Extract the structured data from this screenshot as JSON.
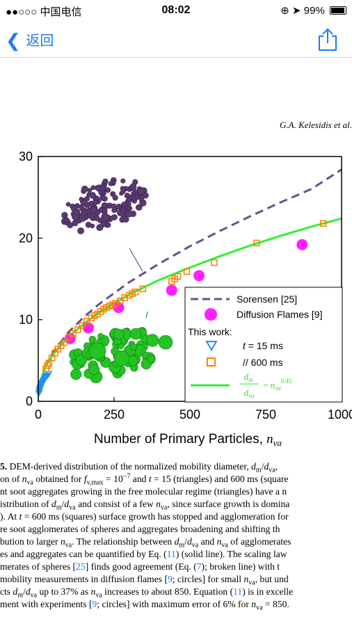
{
  "status": {
    "carrier": "●●○○○ 中国电信",
    "time": "08:02",
    "battery": "99%"
  },
  "nav": {
    "back_label": "返回",
    "share_icon": "share-icon"
  },
  "header": {
    "author": "G.A. Kelesidis et al."
  },
  "chart_data": {
    "type": "scatter",
    "xlabel": "Number of Primary Particles, n_va",
    "xlim": [
      0,
      1000
    ],
    "ylim": [
      0,
      30
    ],
    "xticks": [
      0,
      250,
      500,
      750,
      1000
    ],
    "yticks": [
      0,
      10,
      20,
      30
    ],
    "xtick_labels": [
      "0",
      "250",
      "500",
      "750",
      "1000"
    ],
    "ytick_labels": [
      "0",
      "10",
      "20",
      "30"
    ],
    "legend": {
      "placement": "bottom-right",
      "sorensen": "Sorensen [25]",
      "diffusion": "Diffusion Flames [9]",
      "this_work": "This work:",
      "t15": "t = 15 ms",
      "t600": "//   600 ms",
      "eq_num": "d_m",
      "eq_den": "d_va",
      "eq_rhs": "= n_va^0.45"
    },
    "series": [
      {
        "name": "Sorensen [25]",
        "style": "dashed",
        "color": "#6b4f8a",
        "x": [
          1,
          20,
          50,
          100,
          150,
          200,
          300,
          400,
          500,
          600,
          700,
          800,
          900,
          1000
        ],
        "y": [
          1.1,
          4.0,
          6.1,
          8.5,
          10.3,
          11.9,
          14.6,
          16.9,
          19.0,
          20.9,
          22.7,
          24.4,
          26.0,
          28.4
        ]
      },
      {
        "name": "Diffusion Flames [9]",
        "marker": "circle",
        "color": "#ff1fff",
        "x": [
          105,
          165,
          265,
          440,
          530,
          870
        ],
        "y": [
          7.7,
          9.0,
          11.5,
          13.6,
          15.4,
          19.2
        ]
      },
      {
        "name": "t = 15 ms",
        "marker": "triangle-down",
        "color": "#1e90ff",
        "x": [
          2,
          3,
          4,
          5,
          6,
          7,
          8,
          9,
          10,
          11,
          12,
          13,
          14,
          15,
          17,
          19,
          21,
          23,
          25,
          28,
          31,
          35
        ],
        "y": [
          1.0,
          1.2,
          1.4,
          1.5,
          1.6,
          1.7,
          1.8,
          1.9,
          2.0,
          2.1,
          2.2,
          2.2,
          2.3,
          2.4,
          2.5,
          2.6,
          2.8,
          2.9,
          3.0,
          3.1,
          3.2,
          3.4
        ]
      },
      {
        "name": "600 ms",
        "marker": "square-open",
        "color": "#ff7f00",
        "x": [
          25,
          30,
          35,
          45,
          55,
          65,
          75,
          85,
          100,
          115,
          130,
          145,
          160,
          175,
          185,
          195,
          205,
          215,
          225,
          235,
          245,
          255,
          270,
          285,
          300,
          310,
          320,
          345,
          440,
          450,
          460,
          490,
          580,
          720,
          940
        ],
        "y": [
          4.0,
          4.4,
          4.7,
          5.3,
          5.9,
          6.4,
          6.8,
          7.2,
          7.8,
          8.3,
          8.8,
          9.3,
          9.8,
          10.2,
          10.5,
          10.7,
          11.0,
          11.3,
          11.5,
          11.7,
          11.8,
          12.0,
          12.3,
          12.7,
          13.0,
          13.2,
          13.4,
          13.8,
          14.7,
          15.0,
          15.3,
          15.9,
          17.0,
          19.4,
          21.8
        ]
      },
      {
        "name": "Eq. (11)",
        "style": "solid",
        "color": "#33ee33",
        "x": [
          1,
          10,
          25,
          50,
          100,
          150,
          200,
          300,
          400,
          500,
          600,
          700,
          800,
          900,
          1000
        ],
        "y": [
          1.0,
          2.8,
          4.3,
          5.8,
          7.9,
          9.5,
          10.9,
          13.1,
          14.9,
          16.4,
          17.8,
          19.1,
          20.3,
          21.4,
          22.4
        ]
      }
    ]
  },
  "caption": {
    "lines": [
      {
        "before": "5. DEM-derived distribution of the normalized mobility diameter, d",
        "b2": "/d",
        "b3": ", ",
        "sub1": "m",
        "sub2": "va"
      },
      {
        "text": "on of n_va obtained for f_v,max = 10^−7 and t = 15 (triangles) and 600 ms (square"
      },
      {
        "text": "nt soot aggregates growing in the free molecular regime (triangles) have a n"
      },
      {
        "text": "istribution of d_m/d_va and consist of a few n_va, since surface growth is domina"
      },
      {
        "text": "). At t = 600 ms (squares) surface growth has stopped and agglomeration for"
      },
      {
        "text": "re soot agglomerates of spheres and aggregates broadening and shifting th"
      },
      {
        "text": "bution to larger n_va. The relationship between d_m/d_va and n_va of agglomerates"
      },
      {
        "text": "es and aggregates can be quantified by Eq. (11) (solid line). The scaling law"
      },
      {
        "text": "merates of spheres [25] finds good agreement (Eq. (7); broken line) with t"
      },
      {
        "text": "mobility measurements in diffusion flames [9; circles] for small n_va, but und"
      },
      {
        "text": "cts d_m/d_va up to 37% as n_va increases to about 850. Equation (11) is in excelle"
      },
      {
        "text": "ment with experiments [9; circles] with maximum error of 6% for n_va = 850."
      }
    ]
  }
}
